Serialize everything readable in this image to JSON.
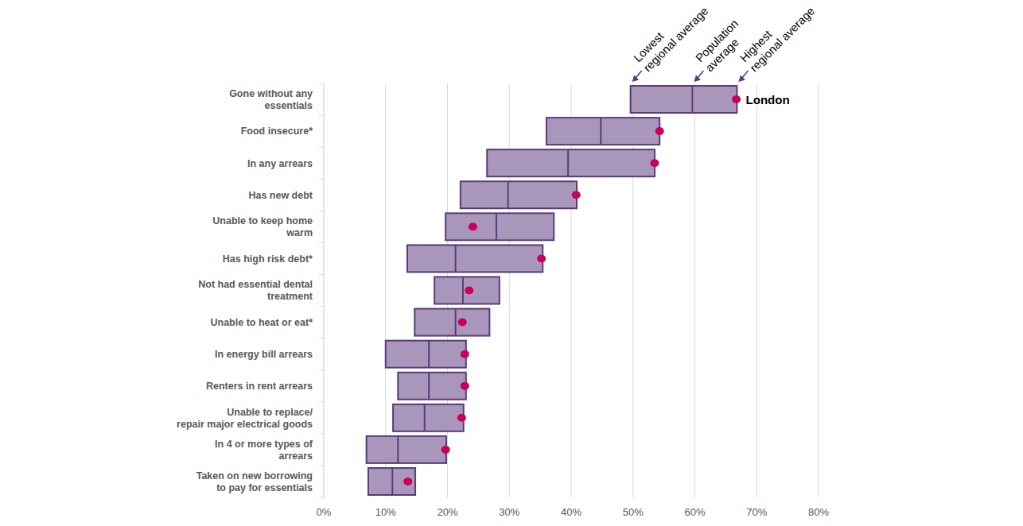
{
  "chart_data": {
    "type": "range",
    "orientation": "horizontal",
    "grid": true,
    "categories": [
      "Gone without any\nessentials",
      "Food insecure*",
      "In any arrears",
      "Has new debt",
      "Unable to keep home\nwarm",
      "Has high risk debt*",
      "Not had essential dental\ntreatment",
      "Unable to heat or eat*",
      "In energy bill arrears",
      "Renters in rent arrears",
      "Unable to replace/\nrepair major electrical goods",
      "In 4 or more types of\narrears",
      "Taken on new borrowing\nto pay for essentials"
    ],
    "series": [
      {
        "name": "Lowest regional average",
        "color": "#a897bb",
        "values": [
          49.6,
          36.0,
          26.4,
          22.1,
          19.7,
          13.5,
          17.9,
          14.7,
          10.0,
          12.0,
          11.2,
          6.9,
          7.2
        ]
      },
      {
        "name": "Population average",
        "color": "#5b3a7a",
        "values": [
          59.6,
          44.8,
          39.5,
          29.8,
          27.9,
          21.3,
          22.5,
          21.3,
          17.0,
          17.0,
          16.3,
          12.0,
          11.1
        ]
      },
      {
        "name": "Highest regional average",
        "color": "#5b3a7a",
        "values": [
          66.8,
          54.3,
          53.5,
          40.9,
          37.2,
          35.4,
          28.4,
          26.8,
          23.0,
          23.0,
          22.6,
          19.8,
          14.8
        ]
      },
      {
        "name": "London",
        "color": "#cc0055",
        "marker": "circle",
        "values": [
          66.7,
          54.3,
          53.5,
          40.8,
          24.1,
          35.2,
          23.5,
          22.4,
          22.8,
          22.8,
          22.3,
          19.7,
          13.6
        ]
      }
    ],
    "xlim": [
      0,
      80
    ],
    "xticks": [
      {
        "value": 0,
        "label": "0%"
      },
      {
        "value": 10,
        "label": "10%"
      },
      {
        "value": 20,
        "label": "20%"
      },
      {
        "value": 30,
        "label": "30%"
      },
      {
        "value": 40,
        "label": "40%"
      },
      {
        "value": 50,
        "label": "50%"
      },
      {
        "value": 60,
        "label": "60%"
      },
      {
        "value": 70,
        "label": "70%"
      },
      {
        "value": 80,
        "label": "80%"
      }
    ]
  }
}
